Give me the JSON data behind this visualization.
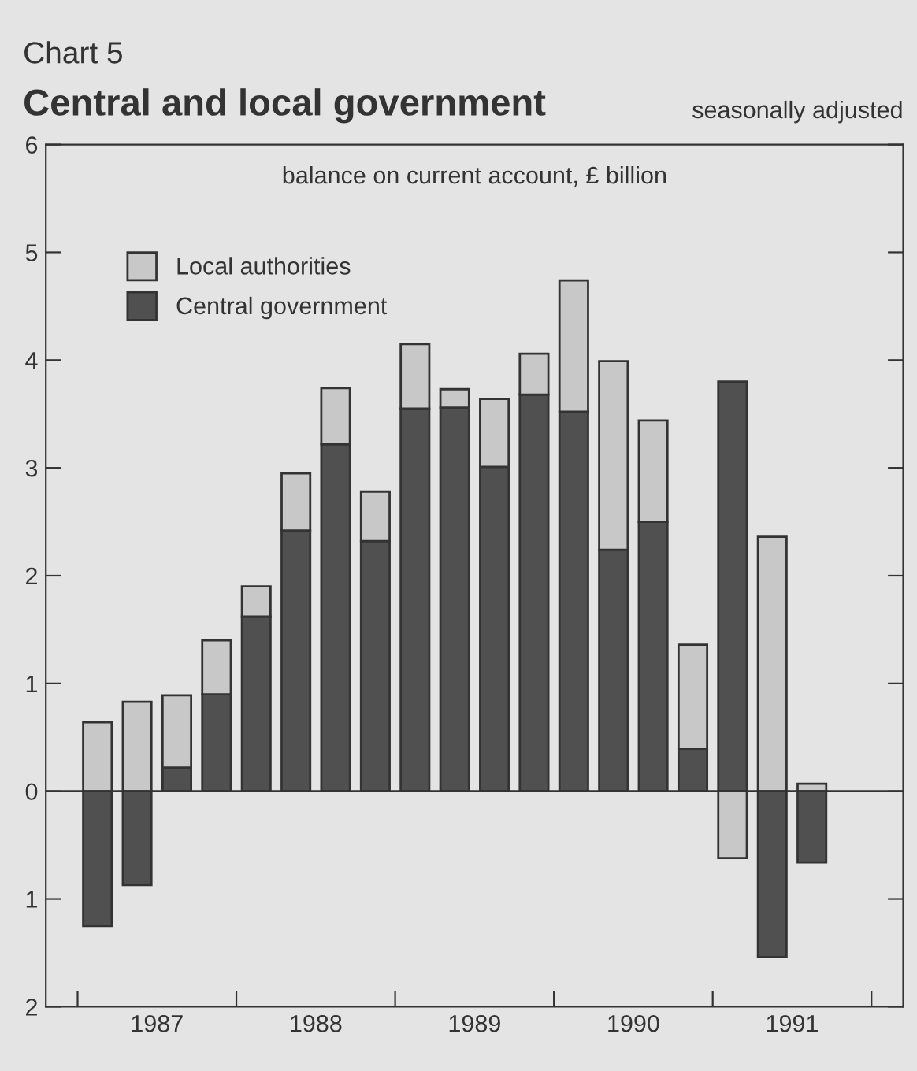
{
  "chart_data": {
    "type": "bar",
    "title": "Central and local government",
    "subtitle": "seasonally adjusted",
    "ylabel": "balance on current account, £ billion",
    "annotations": [
      "Chart 5"
    ],
    "x": [
      1987.125,
      1987.375,
      1987.625,
      1987.875,
      1988.125,
      1988.375,
      1988.625,
      1988.875,
      1989.125,
      1989.375,
      1989.625,
      1989.875,
      1990.125,
      1990.375,
      1990.625,
      1990.875,
      1991.125,
      1991.375,
      1991.625
    ],
    "stacked": true,
    "legend": "top left",
    "grid": false,
    "ref_lines": [
      {
        "axis": "y",
        "value": 0,
        "color": "#333333"
      }
    ],
    "series": [
      {
        "name": "Central government",
        "color": "#505050",
        "values": [
          -1.25,
          -0.87,
          0.22,
          0.9,
          1.62,
          2.42,
          3.22,
          2.32,
          3.55,
          3.56,
          3.01,
          3.68,
          3.52,
          2.24,
          2.5,
          0.39,
          3.8,
          -1.54,
          -0.66
        ]
      },
      {
        "name": "Local authorities",
        "color": "#c8c8c8",
        "values": [
          0.64,
          0.83,
          0.67,
          0.5,
          0.28,
          0.53,
          0.52,
          0.46,
          0.6,
          0.17,
          0.63,
          0.38,
          1.22,
          1.75,
          0.94,
          0.97,
          -0.62,
          2.36,
          0.07
        ]
      }
    ],
    "xlim": [
      1986.8,
      1992.2
    ],
    "xticks": [
      {
        "value": 1987,
        "label": null
      },
      {
        "value": 1988,
        "label": null
      },
      {
        "value": 1989,
        "label": null
      },
      {
        "value": 1990,
        "label": null
      },
      {
        "value": 1991,
        "label": null
      },
      {
        "value": 1992,
        "label": null
      },
      {
        "value": 1987.5,
        "label": "1987"
      },
      {
        "value": 1988.5,
        "label": "1988"
      },
      {
        "value": 1989.5,
        "label": "1989"
      },
      {
        "value": 1990.5,
        "label": "1990"
      },
      {
        "value": 1991.5,
        "label": "1991"
      }
    ],
    "ylim": [
      -2,
      6
    ],
    "yticks": [
      {
        "value": -2,
        "label": "2"
      },
      {
        "value": -1,
        "label": "1"
      },
      0,
      1,
      2,
      3,
      4,
      5,
      6
    ]
  }
}
